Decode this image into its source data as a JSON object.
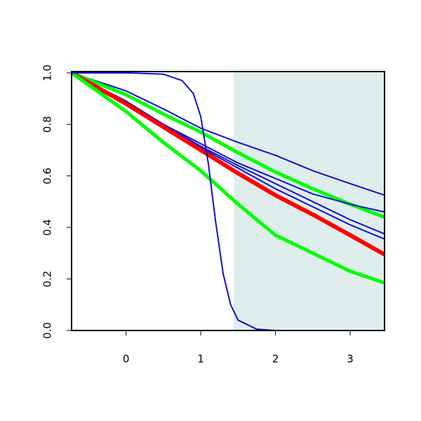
{
  "chart_data": {
    "type": "line",
    "x": [
      -0.73,
      0,
      0.5,
      1,
      1.5,
      2,
      2.5,
      3,
      3.46
    ],
    "xlim": [
      -0.73,
      3.46
    ],
    "ylim": [
      0,
      1.005
    ],
    "xticks": [
      0,
      1,
      2,
      3
    ],
    "yticks": [
      {
        "value": 0,
        "label": "0.0"
      },
      0.2,
      0.4,
      0.6,
      0.8,
      {
        "value": 1,
        "label": "1.0"
      }
    ],
    "shade_xlim": [
      1.44,
      3.46
    ],
    "shade_color": "#dfeded",
    "series": [
      {
        "color": "#1010d0",
        "line_width": 2,
        "values": [
          1,
          0.93,
          0.86,
          0.785,
          0.73,
          0.68,
          0.62,
          0.57,
          0.525
        ]
      },
      {
        "color": "#00ff00",
        "line_width": 5,
        "values": [
          1,
          0.915,
          0.84,
          0.77,
          0.69,
          0.615,
          0.55,
          0.49,
          0.44
        ]
      },
      {
        "color": "#1010d0",
        "line_width": 2,
        "values": [
          1,
          0.89,
          0.8,
          0.725,
          0.65,
          0.59,
          0.53,
          0.49,
          0.46
        ]
      },
      {
        "color": "#1010d0",
        "line_width": 2,
        "values": [
          1,
          0.89,
          0.8,
          0.715,
          0.64,
          0.57,
          0.5,
          0.43,
          0.375
        ]
      },
      {
        "color": "#1010d0",
        "line_width": 2,
        "values": [
          1,
          0.89,
          0.795,
          0.71,
          0.63,
          0.55,
          0.48,
          0.41,
          0.355
        ]
      },
      {
        "color": "#ff0000",
        "line_width": 6,
        "values": [
          1,
          0.88,
          0.79,
          0.7,
          0.61,
          0.525,
          0.45,
          0.37,
          0.295
        ]
      },
      {
        "color": "#00ff00",
        "line_width": 5,
        "values": [
          1,
          0.85,
          0.73,
          0.62,
          0.49,
          0.37,
          0.3,
          0.23,
          0.185
        ]
      },
      {
        "color": "#1010d0",
        "line_width": 2,
        "x": [
          -0.73,
          0,
          0.5,
          0.75,
          0.9,
          1,
          1.1,
          1.2,
          1.3,
          1.4,
          1.5,
          1.75,
          2,
          2.5,
          3.46
        ],
        "values": [
          1,
          1,
          0.995,
          0.97,
          0.92,
          0.83,
          0.65,
          0.42,
          0.22,
          0.1,
          0.04,
          0.005,
          0,
          0,
          0
        ]
      }
    ]
  }
}
